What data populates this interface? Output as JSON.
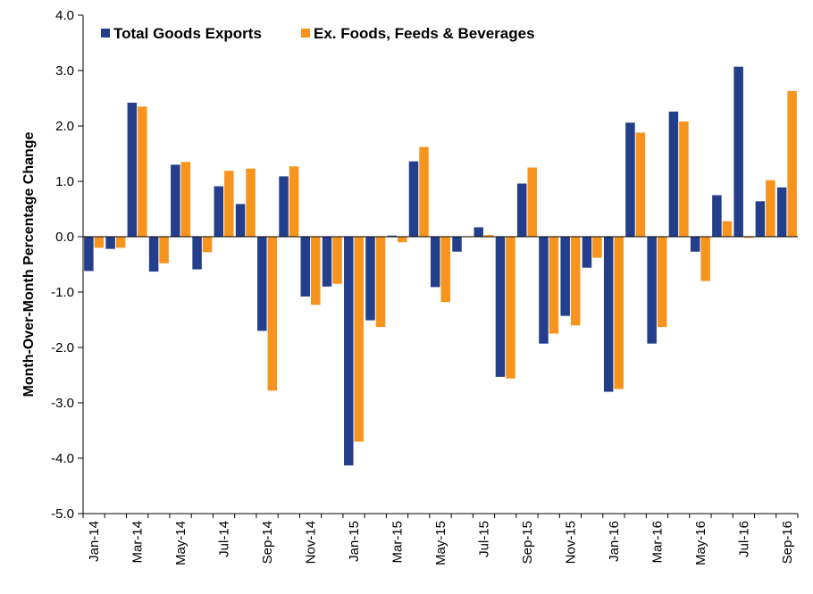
{
  "chart_data": {
    "type": "bar",
    "title": "",
    "xlabel": "",
    "ylabel": "Month-Over-Month Percentage Change",
    "ylim": [
      -5.0,
      4.0
    ],
    "y_ticks": [
      "4.0",
      "3.0",
      "2.0",
      "1.0",
      "0.0",
      "-1.0",
      "-2.0",
      "-3.0",
      "-4.0",
      "-5.0"
    ],
    "y_tick_values": [
      4,
      3,
      2,
      1,
      0,
      -1,
      -2,
      -3,
      -4,
      -5
    ],
    "legend_position": "top-left",
    "grid": false,
    "categories": [
      "Jan-14",
      "Feb-14",
      "Mar-14",
      "Apr-14",
      "May-14",
      "Jun-14",
      "Jul-14",
      "Aug-14",
      "Sep-14",
      "Oct-14",
      "Nov-14",
      "Dec-14",
      "Jan-15",
      "Feb-15",
      "Mar-15",
      "Apr-15",
      "May-15",
      "Jun-15",
      "Jul-15",
      "Aug-15",
      "Sep-15",
      "Oct-15",
      "Nov-15",
      "Dec-15",
      "Jan-16",
      "Feb-16",
      "Mar-16",
      "Apr-16",
      "May-16",
      "Jun-16",
      "Jul-16",
      "Aug-16",
      "Sep-16"
    ],
    "x_tick_labels": [
      "Jan-14",
      "",
      "Mar-14",
      "",
      "May-14",
      "",
      "Jul-14",
      "",
      "Sep-14",
      "",
      "Nov-14",
      "",
      "Jan-15",
      "",
      "Mar-15",
      "",
      "May-15",
      "",
      "Jul-15",
      "",
      "Sep-15",
      "",
      "Nov-15",
      "",
      "Jan-16",
      "",
      "Mar-16",
      "",
      "May-16",
      "",
      "Jul-16",
      "",
      "Sep-16"
    ],
    "series": [
      {
        "name": "Total Goods Exports",
        "color": "#233E8B",
        "values": [
          -0.62,
          -0.22,
          2.42,
          -0.63,
          1.3,
          -0.59,
          0.91,
          0.59,
          -1.7,
          1.09,
          -1.08,
          -0.9,
          -4.13,
          -1.51,
          0.02,
          1.36,
          -0.91,
          -0.27,
          0.17,
          -2.53,
          0.96,
          -1.93,
          -1.43,
          -0.56,
          -2.8,
          2.06,
          -1.93,
          2.26,
          -0.27,
          0.75,
          3.07,
          0.64,
          0.89
        ]
      },
      {
        "name": "Ex. Foods, Feeds & Beverages",
        "color": "#F7941D",
        "values": [
          -0.2,
          -0.2,
          2.35,
          -0.48,
          1.35,
          -0.28,
          1.19,
          1.23,
          -2.78,
          1.27,
          -1.23,
          -0.85,
          -3.7,
          -1.63,
          -0.1,
          1.62,
          -1.18,
          0.0,
          0.03,
          -2.56,
          1.25,
          -1.75,
          -1.6,
          -0.38,
          -2.75,
          1.88,
          -1.63,
          2.08,
          -0.8,
          0.28,
          -0.02,
          1.02,
          2.63
        ]
      }
    ]
  }
}
